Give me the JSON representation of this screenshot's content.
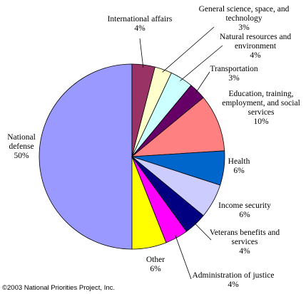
{
  "chart_data": {
    "type": "pie",
    "title": "",
    "slices": [
      {
        "name": "National defense",
        "lines": [
          "National",
          "defense"
        ],
        "value": 50,
        "pct_label": "50%",
        "color": "#9999ff"
      },
      {
        "name": "International affairs",
        "lines": [
          "International affairs"
        ],
        "value": 4,
        "pct_label": "4%",
        "color": "#993366"
      },
      {
        "name": "General science, space, and technology",
        "lines": [
          "General science, space, and",
          "technology"
        ],
        "value": 3,
        "pct_label": "3%",
        "color": "#ffffcc"
      },
      {
        "name": "Natural resources and environment",
        "lines": [
          "Natural resources and",
          "environment"
        ],
        "value": 4,
        "pct_label": "4%",
        "color": "#ccffff"
      },
      {
        "name": "Transportation",
        "lines": [
          "Transportation"
        ],
        "value": 3,
        "pct_label": "3%",
        "color": "#660066"
      },
      {
        "name": "Education, training, employment, and social services",
        "lines": [
          "Education, training,",
          "employment, and social",
          "services"
        ],
        "value": 10,
        "pct_label": "10%",
        "color": "#ff8080"
      },
      {
        "name": "Health",
        "lines": [
          "Health"
        ],
        "value": 6,
        "pct_label": "6%",
        "color": "#0066cc"
      },
      {
        "name": "Income security",
        "lines": [
          "Income security"
        ],
        "value": 6,
        "pct_label": "6%",
        "color": "#ccccff"
      },
      {
        "name": "Veterans benefits and services",
        "lines": [
          "Veterans benefits and",
          "services"
        ],
        "value": 4,
        "pct_label": "4%",
        "color": "#000080"
      },
      {
        "name": "Administration of justice",
        "lines": [
          "Administration of justice"
        ],
        "value": 4,
        "pct_label": "4%",
        "color": "#ff00ff"
      },
      {
        "name": "Other",
        "lines": [
          "Other"
        ],
        "value": 6,
        "pct_label": "6%",
        "color": "#ffff00"
      }
    ]
  },
  "copyright": "©2003 National Priorities Project, Inc."
}
